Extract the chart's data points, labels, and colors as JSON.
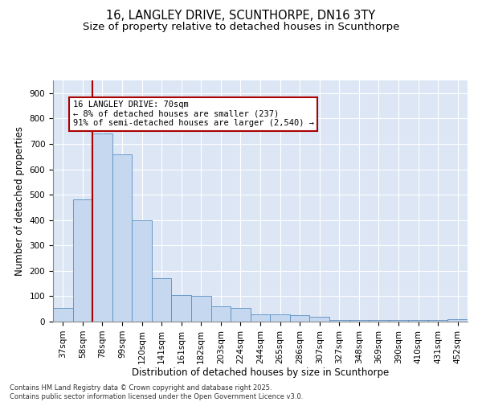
{
  "title_line1": "16, LANGLEY DRIVE, SCUNTHORPE, DN16 3TY",
  "title_line2": "Size of property relative to detached houses in Scunthorpe",
  "xlabel": "Distribution of detached houses by size in Scunthorpe",
  "ylabel": "Number of detached properties",
  "bar_labels": [
    "37sqm",
    "58sqm",
    "78sqm",
    "99sqm",
    "120sqm",
    "141sqm",
    "161sqm",
    "182sqm",
    "203sqm",
    "224sqm",
    "244sqm",
    "265sqm",
    "286sqm",
    "307sqm",
    "327sqm",
    "348sqm",
    "369sqm",
    "390sqm",
    "410sqm",
    "431sqm",
    "452sqm"
  ],
  "bar_values": [
    55,
    480,
    740,
    660,
    400,
    170,
    105,
    100,
    60,
    55,
    30,
    28,
    25,
    20,
    5,
    5,
    5,
    5,
    5,
    5,
    8
  ],
  "bar_color": "#c5d8f0",
  "bar_edgecolor": "#5a8fc0",
  "redline_x": 1.5,
  "annotation_text": "16 LANGLEY DRIVE: 70sqm\n← 8% of detached houses are smaller (237)\n91% of semi-detached houses are larger (2,540) →",
  "annotation_box_facecolor": "#ffffff",
  "annotation_box_edgecolor": "#aa0000",
  "redline_color": "#aa0000",
  "plot_background": "#dce6f5",
  "fig_background": "#ffffff",
  "footer_text": "Contains HM Land Registry data © Crown copyright and database right 2025.\nContains public sector information licensed under the Open Government Licence v3.0.",
  "ylim": [
    0,
    950
  ],
  "yticks": [
    0,
    100,
    200,
    300,
    400,
    500,
    600,
    700,
    800,
    900
  ],
  "title_fontsize": 10.5,
  "subtitle_fontsize": 9.5,
  "axis_label_fontsize": 8.5,
  "tick_fontsize": 7.5,
  "annotation_fontsize": 7.5,
  "footer_fontsize": 6.0
}
